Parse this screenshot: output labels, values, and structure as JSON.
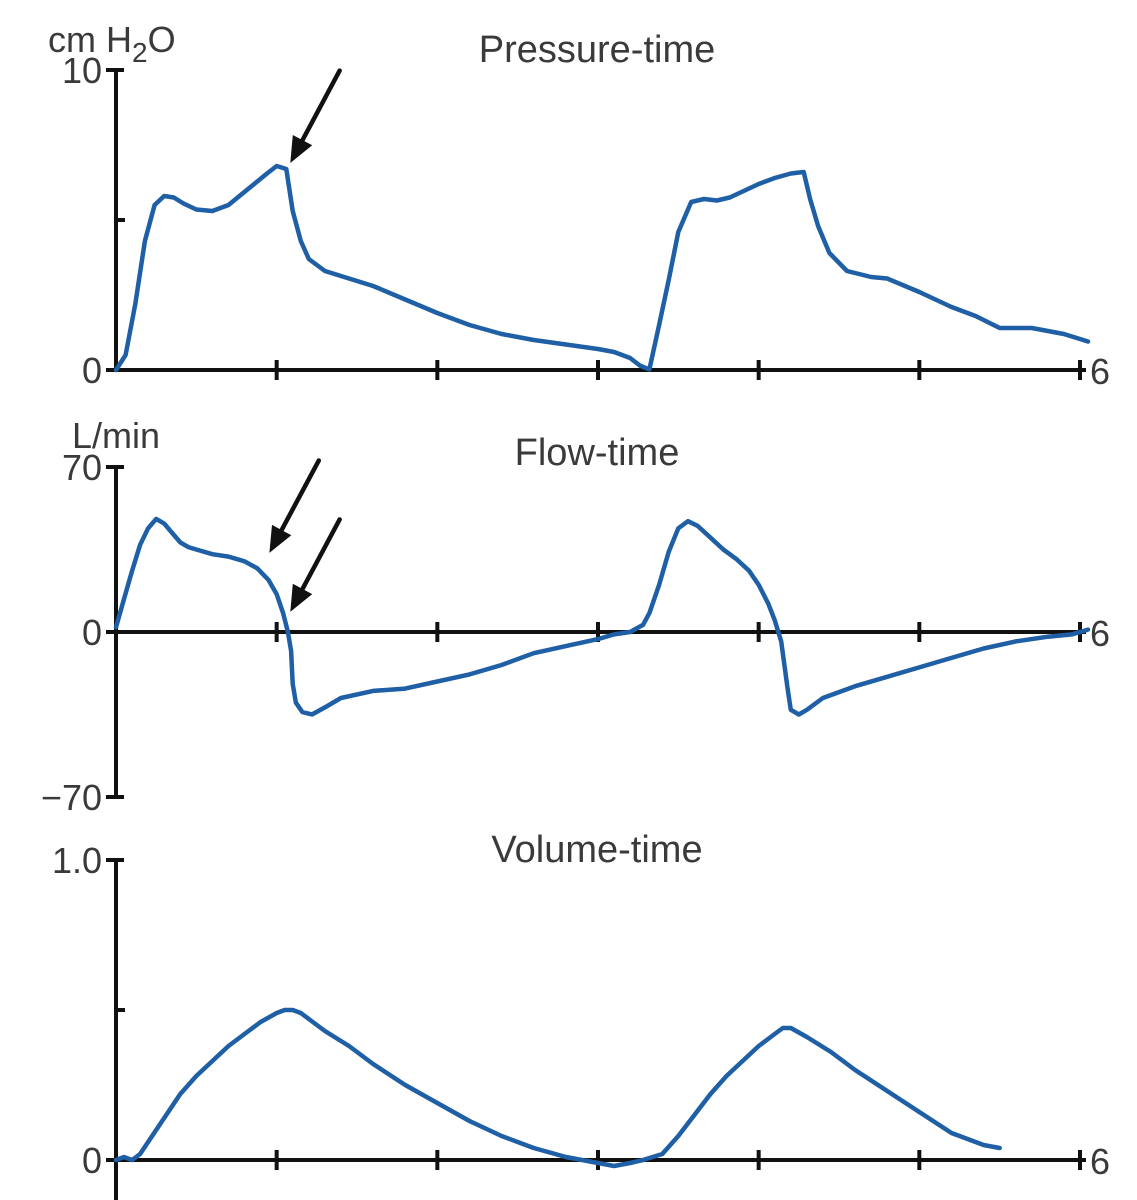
{
  "chart_data": [
    {
      "type": "line",
      "title": "Pressure-time",
      "unit_label_parts": [
        "cm H",
        "2",
        "O"
      ],
      "ylim": [
        0,
        10
      ],
      "xlim": [
        0,
        6
      ],
      "x_ticks": [
        0,
        1,
        2,
        3,
        4,
        5,
        6
      ],
      "y_tick_labels": [
        {
          "value": 10,
          "label": "10"
        },
        {
          "value": 0,
          "label": "0"
        }
      ],
      "y_minor_ticks": [
        5
      ],
      "x_end_label": "6",
      "annotations": [
        {
          "kind": "arrow",
          "target": [
            1.06,
            6.7
          ]
        }
      ],
      "series": [
        {
          "color": "#1f5fa6",
          "x": [
            0,
            0.06,
            0.12,
            0.18,
            0.24,
            0.3,
            0.36,
            0.42,
            0.5,
            0.6,
            0.7,
            0.78,
            0.86,
            0.94,
            1.0,
            1.06,
            1.1,
            1.15,
            1.2,
            1.3,
            1.45,
            1.6,
            1.8,
            2.0,
            2.2,
            2.4,
            2.6,
            2.8,
            3.0,
            3.1,
            3.2,
            3.26,
            3.32,
            3.38,
            3.44,
            3.5,
            3.58,
            3.66,
            3.74,
            3.82,
            3.9,
            4.0,
            4.1,
            4.2,
            4.28,
            4.32,
            4.37,
            4.44,
            4.55,
            4.7,
            4.8,
            5.0,
            5.2,
            5.35,
            5.5,
            5.7,
            5.9,
            6.05
          ],
          "y": [
            0,
            0.5,
            2.2,
            4.3,
            5.5,
            5.8,
            5.75,
            5.55,
            5.35,
            5.3,
            5.5,
            5.85,
            6.2,
            6.55,
            6.8,
            6.7,
            5.3,
            4.3,
            3.7,
            3.3,
            3.05,
            2.8,
            2.35,
            1.9,
            1.5,
            1.2,
            1.0,
            0.85,
            0.7,
            0.6,
            0.4,
            0.15,
            0.02,
            1.5,
            3.0,
            4.6,
            5.6,
            5.7,
            5.65,
            5.75,
            5.95,
            6.2,
            6.4,
            6.55,
            6.6,
            5.7,
            4.8,
            3.9,
            3.3,
            3.1,
            3.05,
            2.6,
            2.1,
            1.8,
            1.4,
            1.4,
            1.2,
            0.95
          ]
        }
      ]
    },
    {
      "type": "line",
      "title": "Flow-time",
      "unit_label": "L/min",
      "ylim": [
        -70,
        70
      ],
      "xlim": [
        0,
        6
      ],
      "x_ticks": [
        0,
        1,
        2,
        3,
        4,
        5,
        6
      ],
      "y_tick_labels": [
        {
          "value": 70,
          "label": "70"
        },
        {
          "value": 0,
          "label": "0"
        },
        {
          "value": -70,
          "label": "−70"
        }
      ],
      "x_end_label": "6",
      "annotations": [
        {
          "kind": "arrow",
          "target": [
            0.93,
            31
          ]
        },
        {
          "kind": "arrow",
          "target": [
            1.06,
            6
          ]
        }
      ],
      "series": [
        {
          "color": "#1f5fa6",
          "x": [
            0,
            0.05,
            0.1,
            0.15,
            0.2,
            0.25,
            0.3,
            0.35,
            0.4,
            0.45,
            0.5,
            0.6,
            0.7,
            0.8,
            0.88,
            0.95,
            1.0,
            1.04,
            1.07,
            1.09,
            1.1,
            1.12,
            1.16,
            1.22,
            1.3,
            1.4,
            1.6,
            1.8,
            2.0,
            2.2,
            2.4,
            2.6,
            2.8,
            3.0,
            3.1,
            3.2,
            3.28,
            3.32,
            3.38,
            3.44,
            3.5,
            3.56,
            3.62,
            3.7,
            3.78,
            3.86,
            3.94,
            4.0,
            4.06,
            4.1,
            4.14,
            4.16,
            4.18,
            4.2,
            4.25,
            4.3,
            4.4,
            4.6,
            4.8,
            5.0,
            5.2,
            5.4,
            5.6,
            5.8,
            5.95,
            6.05
          ],
          "y": [
            2,
            14,
            26,
            37,
            44,
            48,
            46,
            42,
            38,
            36,
            35,
            33,
            32,
            30,
            27,
            22,
            16,
            8,
            0,
            -8,
            -22,
            -30,
            -34,
            -35,
            -32,
            -28,
            -25,
            -24,
            -21,
            -18,
            -14,
            -9,
            -6,
            -3,
            -1,
            0,
            3,
            8,
            20,
            34,
            44,
            47,
            45,
            40,
            35,
            31,
            26,
            20,
            12,
            5,
            -4,
            -14,
            -24,
            -33,
            -35,
            -33,
            -28,
            -23,
            -19,
            -15,
            -11,
            -7,
            -4,
            -2,
            -1,
            1
          ]
        }
      ]
    },
    {
      "type": "line",
      "title": "Volume-time",
      "ylim": [
        0,
        1.0
      ],
      "xlim": [
        0,
        6
      ],
      "x_ticks": [
        0,
        1,
        2,
        3,
        4,
        5,
        6
      ],
      "y_tick_labels": [
        {
          "value": 1.0,
          "label": "1.0"
        },
        {
          "value": 0,
          "label": "0"
        }
      ],
      "y_minor_ticks": [
        0.5
      ],
      "x_end_label": "6",
      "series": [
        {
          "color": "#1f5fa6",
          "x": [
            0,
            0.05,
            0.1,
            0.15,
            0.2,
            0.3,
            0.4,
            0.5,
            0.6,
            0.7,
            0.8,
            0.9,
            1.0,
            1.05,
            1.1,
            1.15,
            1.2,
            1.3,
            1.45,
            1.6,
            1.8,
            2.0,
            2.2,
            2.4,
            2.6,
            2.8,
            3.0,
            3.1,
            3.2,
            3.28,
            3.34,
            3.4,
            3.5,
            3.6,
            3.7,
            3.8,
            3.9,
            4.0,
            4.1,
            4.15,
            4.2,
            4.3,
            4.45,
            4.6,
            4.8,
            5.0,
            5.2,
            5.4,
            5.5
          ],
          "y": [
            0.0,
            0.01,
            0.0,
            0.02,
            0.06,
            0.14,
            0.22,
            0.28,
            0.33,
            0.38,
            0.42,
            0.46,
            0.49,
            0.5,
            0.5,
            0.49,
            0.47,
            0.43,
            0.38,
            0.32,
            0.25,
            0.19,
            0.13,
            0.08,
            0.04,
            0.01,
            -0.01,
            -0.02,
            -0.01,
            0.0,
            0.01,
            0.02,
            0.08,
            0.15,
            0.22,
            0.28,
            0.33,
            0.38,
            0.42,
            0.44,
            0.44,
            0.41,
            0.36,
            0.3,
            0.23,
            0.16,
            0.09,
            0.05,
            0.04
          ]
        }
      ]
    }
  ]
}
